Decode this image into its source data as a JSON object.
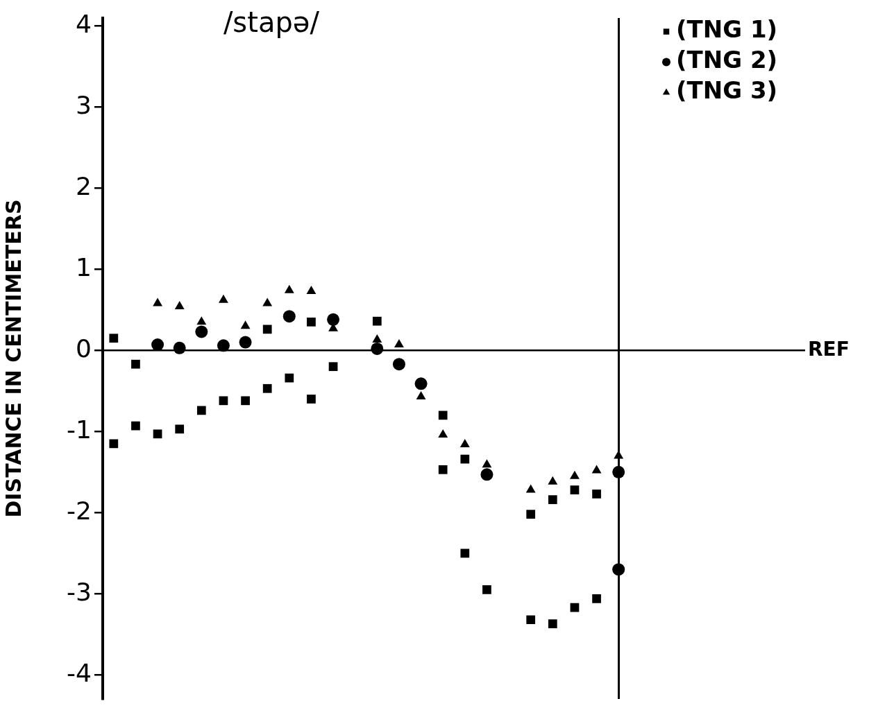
{
  "chart_data": {
    "type": "scatter",
    "title": "/stapə/",
    "ylabel": "DISTANCE IN CENTIMETERS",
    "categories": [
      null,
      null,
      null,
      null,
      null,
      null,
      null,
      null,
      null,
      null,
      null,
      null,
      null,
      null,
      null,
      null,
      null,
      null,
      null,
      null,
      null,
      null,
      null,
      null,
      null,
      null,
      null,
      null,
      null,
      null,
      null,
      null
    ],
    "ylim": [
      -4.3,
      4.1
    ],
    "yticks": [
      -4,
      -3,
      -2,
      -1,
      0,
      1,
      2,
      3,
      4
    ],
    "tick_labels": "y",
    "grid": false,
    "legend": "top right",
    "ref_lines": [
      {
        "axis": "y",
        "value": 0,
        "label": "REF"
      }
    ],
    "series": [
      {
        "name": "(TNG 1)",
        "color": "#000000",
        "marker": "square",
        "values": [
          0.15,
          -0.17,
          null,
          null,
          null,
          null,
          null,
          0.26,
          null,
          0.35,
          -0.2,
          null,
          0.36,
          null,
          null,
          -0.8,
          -1.34,
          null,
          null,
          -2.02,
          -1.84,
          -1.72,
          -1.77,
          null,
          null,
          null,
          null,
          null,
          null,
          null,
          null,
          null
        ]
      },
      {
        "color": "#000000",
        "marker": "square",
        "values": [
          -1.15,
          -0.93,
          -1.03,
          -0.97,
          -0.74,
          -0.62,
          -0.62,
          -0.47,
          -0.34,
          -0.6,
          null,
          null,
          null,
          null,
          null,
          -1.47,
          -2.5,
          -2.95,
          null,
          -3.32,
          -3.37,
          -3.17,
          -3.06,
          null,
          null,
          null,
          null,
          null,
          null,
          null,
          null,
          null
        ]
      },
      {
        "name": "(TNG 2)",
        "color": "#000000",
        "marker": "circle",
        "values": [
          null,
          null,
          0.07,
          0.03,
          0.23,
          0.06,
          0.1,
          null,
          0.42,
          null,
          0.38,
          null,
          0.02,
          -0.17,
          -0.41,
          null,
          null,
          -1.53,
          null,
          null,
          null,
          null,
          null,
          -1.5,
          null,
          null,
          null,
          null,
          null,
          null,
          null,
          null
        ]
      },
      {
        "color": "#000000",
        "marker": "circle",
        "values": [
          null,
          null,
          null,
          null,
          null,
          null,
          null,
          null,
          null,
          null,
          null,
          null,
          null,
          null,
          null,
          null,
          null,
          null,
          null,
          null,
          null,
          null,
          null,
          -2.7,
          null,
          null,
          null,
          null,
          null,
          null,
          null,
          null
        ]
      },
      {
        "name": "(TNG 3)",
        "color": "#000000",
        "marker": "triangle",
        "values": [
          null,
          null,
          0.58,
          0.54,
          0.35,
          0.62,
          0.3,
          0.58,
          0.74,
          0.73,
          0.27,
          null,
          0.13,
          0.07,
          -0.57,
          -1.04,
          -1.16,
          -1.41,
          null,
          -1.72,
          -1.62,
          -1.55,
          -1.48,
          -1.3,
          null,
          null,
          null,
          null,
          null,
          null,
          null,
          null
        ]
      }
    ]
  }
}
